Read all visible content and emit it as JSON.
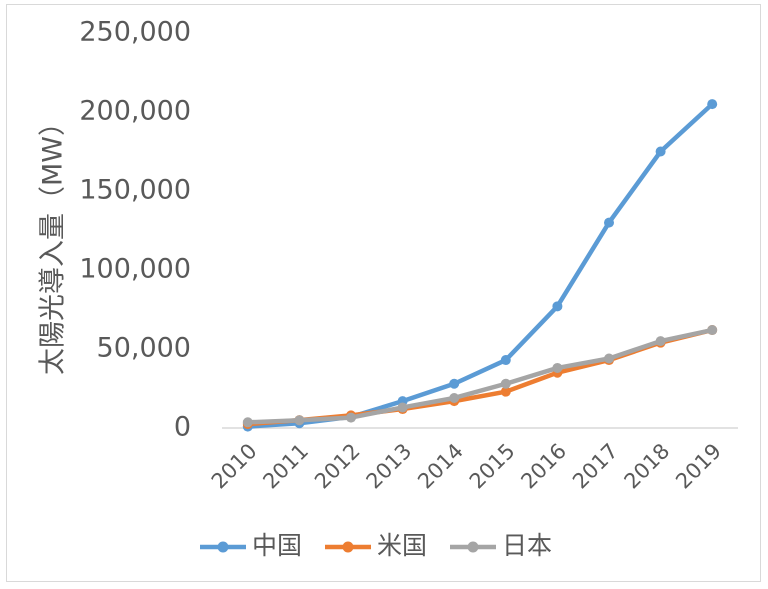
{
  "chart_data": {
    "type": "line",
    "title": "",
    "xlabel": "",
    "ylabel": "太陽光導入量（MW）",
    "categories": [
      "2010",
      "2011",
      "2012",
      "2013",
      "2014",
      "2015",
      "2016",
      "2017",
      "2018",
      "2019"
    ],
    "ylim": [
      0,
      250000
    ],
    "yticks": [
      "0",
      "50,000",
      "100,000",
      "150,000",
      "200,000",
      "250,000"
    ],
    "grid": false,
    "legend_position": "bottom",
    "series": [
      {
        "name": "中国",
        "color": "#5b9bd5",
        "values": [
          900,
          3000,
          7000,
          17000,
          28000,
          43000,
          77000,
          130000,
          175000,
          205000
        ]
      },
      {
        "name": "米国",
        "color": "#ed7d31",
        "values": [
          2500,
          5000,
          8000,
          12000,
          17000,
          23000,
          35000,
          43000,
          54000,
          62000
        ]
      },
      {
        "name": "日本",
        "color": "#a5a5a5",
        "values": [
          3600,
          4900,
          6600,
          13000,
          19000,
          28000,
          38000,
          44000,
          55000,
          62000
        ]
      }
    ]
  }
}
